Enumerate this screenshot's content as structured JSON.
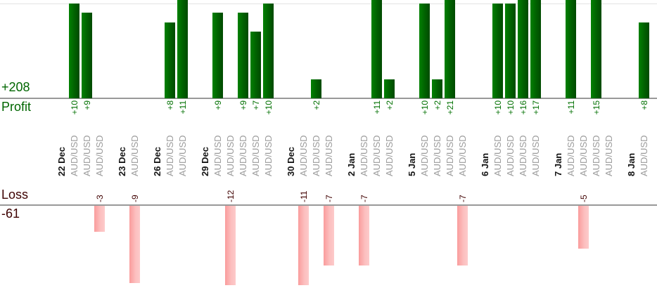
{
  "colors": {
    "profit_text": "#006600",
    "loss_text": "#3d0000",
    "profit_value_text": "#017001",
    "loss_value_text": "#400000",
    "date_text": "#141414",
    "symbol_text": "#9b9b9b",
    "axis_line": "#999999",
    "gridline": "#e3e3e3",
    "bar_green_start": "#028102",
    "bar_green_mid": "#016001",
    "bar_green_end": "#014a01",
    "bar_pink_start": "#fa9c9c",
    "bar_pink_mid": "#fcc0c0",
    "bar_pink_end": "#fdcaca"
  },
  "chart_data": {
    "type": "bar",
    "title": "",
    "symbol": "AUD/USD",
    "profit_total_label": "+208",
    "profit_axis_label": "Profit",
    "loss_axis_label": "Loss",
    "loss_total_label": "-61",
    "profit_total": 208,
    "loss_total": -61,
    "gridline_values": [
      10
    ],
    "legend": "none",
    "series": [
      {
        "date": "22 Dec",
        "trades": [
          {
            "v": 10,
            "label": "+10"
          },
          {
            "v": 9,
            "label": "+9"
          },
          {
            "v": -3,
            "label": "-3"
          }
        ]
      },
      {
        "date": "23 Dec",
        "trades": [
          {
            "v": -9,
            "label": "-9"
          }
        ]
      },
      {
        "date": "26 Dec",
        "trades": [
          {
            "v": 8,
            "label": "+8"
          },
          {
            "v": 11,
            "label": "+11"
          }
        ]
      },
      {
        "date": "29 Dec",
        "trades": [
          {
            "v": 9,
            "label": "+9"
          },
          {
            "v": -12,
            "label": "-12"
          },
          {
            "v": 9,
            "label": "+9"
          },
          {
            "v": 7,
            "label": "+7"
          },
          {
            "v": 10,
            "label": "+10"
          }
        ]
      },
      {
        "date": "30 Dec",
        "trades": [
          {
            "v": -11,
            "label": "-11"
          },
          {
            "v": 2,
            "label": "+2"
          },
          {
            "v": -7,
            "label": "-7"
          }
        ]
      },
      {
        "date": "2 Jan",
        "trades": [
          {
            "v": -7,
            "label": "-7"
          },
          {
            "v": 11,
            "label": "+11"
          },
          {
            "v": 2,
            "label": "+2"
          }
        ]
      },
      {
        "date": "5 Jan",
        "trades": [
          {
            "v": 10,
            "label": "+10"
          },
          {
            "v": 2,
            "label": "+2"
          },
          {
            "v": 21,
            "label": "+21"
          },
          {
            "v": -7,
            "label": "-7"
          }
        ]
      },
      {
        "date": "6 Jan",
        "trades": [
          {
            "v": 10,
            "label": "+10"
          },
          {
            "v": 10,
            "label": "+10"
          },
          {
            "v": 16,
            "label": "+16"
          },
          {
            "v": 17,
            "label": "+17"
          }
        ]
      },
      {
        "date": "7 Jan",
        "trades": [
          {
            "v": 11,
            "label": "+11"
          },
          {
            "v": -5,
            "label": "-5"
          },
          {
            "v": 15,
            "label": "+15"
          },
          {
            "v": 0,
            "label": ""
          }
        ]
      },
      {
        "date": "8 Jan",
        "trades": [
          {
            "v": 8,
            "label": "+8"
          }
        ]
      }
    ]
  }
}
